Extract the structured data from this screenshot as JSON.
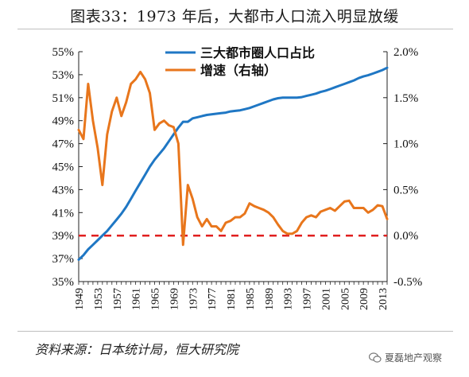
{
  "title": "图表33：1973 年后，大都市人口流入明显放缓",
  "source": "资料来源：日本统计局，恒大研究院",
  "watermark": "夏磊地产观察",
  "chart_data": {
    "type": "line",
    "x_tick_labels": [
      "1949",
      "1953",
      "1957",
      "1961",
      "1965",
      "1969",
      "1973",
      "1977",
      "1981",
      "1985",
      "1989",
      "1993",
      "1997",
      "2001",
      "2005",
      "2009",
      "2013"
    ],
    "y_left": {
      "ticks": [
        "35%",
        "37%",
        "39%",
        "41%",
        "43%",
        "45%",
        "47%",
        "49%",
        "51%",
        "53%",
        "55%"
      ],
      "range": [
        35,
        55
      ]
    },
    "y_right": {
      "ticks": [
        "-0.5%",
        "0.0%",
        "0.5%",
        "1.0%",
        "1.5%",
        "2.0%"
      ],
      "range": [
        -0.5,
        2.0
      ]
    },
    "reference_line": {
      "axis": "right",
      "value": 0.0,
      "color": "#e02020",
      "style": "dashed"
    },
    "series": [
      {
        "name": "三大都市圈人口占比",
        "axis": "left",
        "color": "#1f77c4",
        "x": [
          1949,
          1950,
          1951,
          1952,
          1953,
          1954,
          1955,
          1956,
          1957,
          1958,
          1959,
          1960,
          1961,
          1962,
          1963,
          1964,
          1965,
          1966,
          1967,
          1968,
          1969,
          1970,
          1971,
          1972,
          1973,
          1974,
          1975,
          1976,
          1977,
          1978,
          1979,
          1980,
          1981,
          1982,
          1983,
          1984,
          1985,
          1986,
          1987,
          1988,
          1989,
          1990,
          1991,
          1992,
          1993,
          1994,
          1995,
          1996,
          1997,
          1998,
          1999,
          2000,
          2001,
          2002,
          2003,
          2004,
          2005,
          2006,
          2007,
          2008,
          2009,
          2010,
          2011,
          2012,
          2013,
          2014
        ],
        "values": [
          36.9,
          37.3,
          37.8,
          38.2,
          38.6,
          39.0,
          39.4,
          39.9,
          40.4,
          40.9,
          41.5,
          42.2,
          42.9,
          43.6,
          44.3,
          45.0,
          45.6,
          46.1,
          46.6,
          47.2,
          47.8,
          48.4,
          48.9,
          48.9,
          49.2,
          49.3,
          49.4,
          49.5,
          49.55,
          49.6,
          49.65,
          49.7,
          49.8,
          49.85,
          49.9,
          50.0,
          50.1,
          50.25,
          50.4,
          50.55,
          50.7,
          50.85,
          50.95,
          51.0,
          51.0,
          51.0,
          51.0,
          51.05,
          51.15,
          51.25,
          51.35,
          51.5,
          51.6,
          51.75,
          51.9,
          52.05,
          52.2,
          52.35,
          52.5,
          52.7,
          52.85,
          52.95,
          53.1,
          53.25,
          53.4,
          53.6
        ]
      },
      {
        "name": "增速（右轴）",
        "axis": "right",
        "color": "#e8761c",
        "x": [
          1949,
          1950,
          1951,
          1952,
          1953,
          1954,
          1955,
          1956,
          1957,
          1958,
          1959,
          1960,
          1961,
          1962,
          1963,
          1964,
          1965,
          1966,
          1967,
          1968,
          1969,
          1970,
          1971,
          1972,
          1973,
          1974,
          1975,
          1976,
          1977,
          1978,
          1979,
          1980,
          1981,
          1982,
          1983,
          1984,
          1985,
          1986,
          1987,
          1988,
          1989,
          1990,
          1991,
          1992,
          1993,
          1994,
          1995,
          1996,
          1997,
          1998,
          1999,
          2000,
          2001,
          2002,
          2003,
          2004,
          2005,
          2006,
          2007,
          2008,
          2009,
          2010,
          2011,
          2012,
          2013,
          2014
        ],
        "values": [
          1.15,
          1.05,
          1.65,
          1.25,
          0.95,
          0.55,
          1.1,
          1.35,
          1.5,
          1.3,
          1.45,
          1.65,
          1.7,
          1.78,
          1.7,
          1.55,
          1.15,
          1.22,
          1.25,
          1.2,
          1.18,
          1.0,
          -0.1,
          0.55,
          0.4,
          0.2,
          0.1,
          0.18,
          0.1,
          0.1,
          0.05,
          0.14,
          0.16,
          0.2,
          0.2,
          0.24,
          0.35,
          0.32,
          0.3,
          0.28,
          0.25,
          0.2,
          0.12,
          0.05,
          0.02,
          0.02,
          0.05,
          0.14,
          0.2,
          0.22,
          0.2,
          0.26,
          0.28,
          0.3,
          0.27,
          0.32,
          0.37,
          0.38,
          0.3,
          0.3,
          0.3,
          0.25,
          0.28,
          0.33,
          0.32,
          0.18
        ]
      }
    ],
    "legend_placement": "top-center"
  }
}
